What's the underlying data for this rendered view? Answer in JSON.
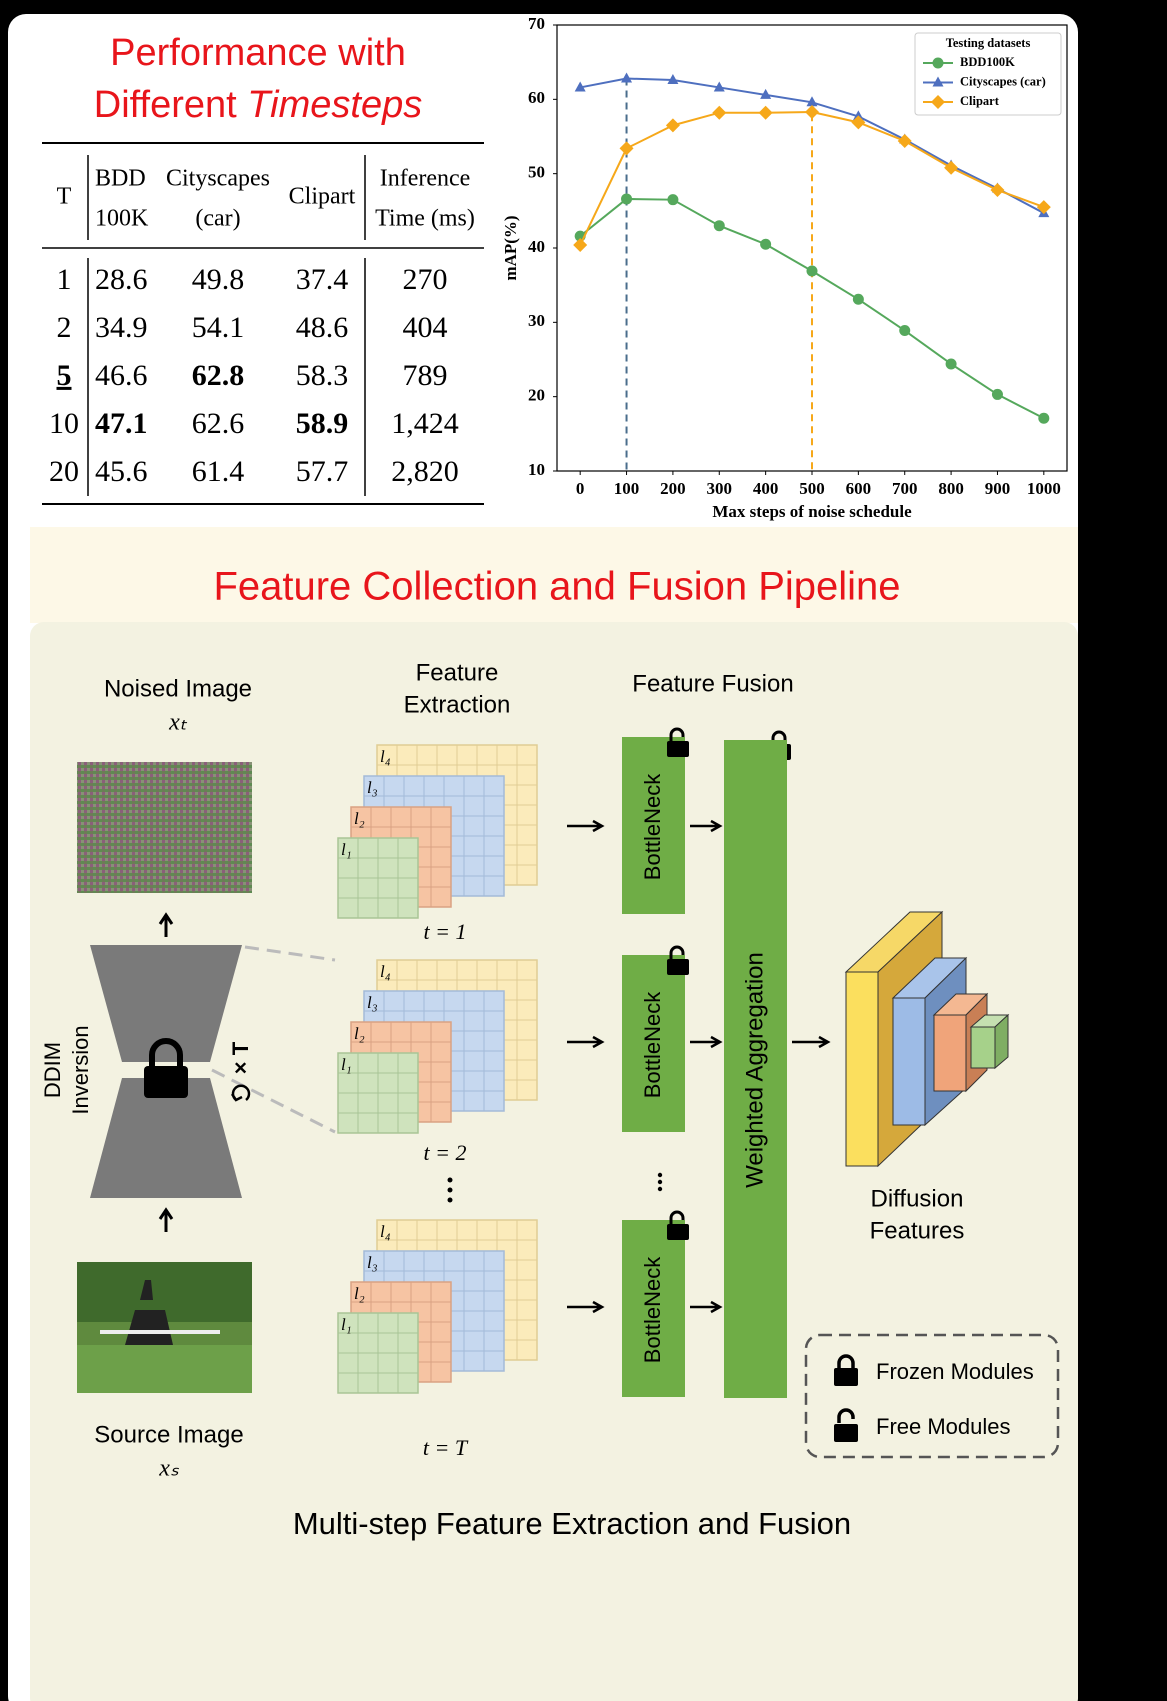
{
  "table": {
    "title_line1": "Performance with",
    "title_line2": "Different",
    "title_line2_italic": "Timesteps",
    "header": [
      [
        "T"
      ],
      [
        "BDD",
        "100K"
      ],
      [
        "Cityscapes",
        "(car)"
      ],
      [
        "Clipart"
      ],
      [
        "Inference",
        "Time (ms)"
      ]
    ],
    "rows": [
      [
        "1",
        "28.6",
        "49.8",
        "37.4",
        "270"
      ],
      [
        "2",
        "34.9",
        "54.1",
        "48.6",
        "404"
      ],
      [
        "5",
        "46.6",
        "62.8",
        "58.3",
        "789"
      ],
      [
        "10",
        "47.1",
        "62.6",
        "58.9",
        "1,424"
      ],
      [
        "20",
        "45.6",
        "61.4",
        "57.7",
        "2,820"
      ]
    ],
    "bold_cells": [
      [
        2,
        0
      ],
      [
        2,
        2
      ],
      [
        3,
        1
      ],
      [
        3,
        3
      ]
    ],
    "underlined_cells": [
      [
        2,
        0
      ]
    ]
  },
  "chart_data": {
    "type": "line",
    "x_label": "Max steps of noise schedule",
    "y_label": "mAP(%)",
    "x": [
      0,
      100,
      200,
      300,
      400,
      500,
      600,
      700,
      800,
      900,
      1000
    ],
    "series": [
      {
        "name": "BDD100K",
        "color": "#55a85c",
        "marker": "circle",
        "values": [
          41.6,
          46.6,
          46.5,
          43.0,
          40.5,
          36.9,
          33.1,
          28.9,
          24.4,
          20.3,
          17.1
        ]
      },
      {
        "name": "Cityscapes (car)",
        "color": "#4e6fbf",
        "marker": "triangle",
        "values": [
          61.6,
          62.8,
          62.6,
          61.6,
          60.6,
          59.6,
          57.7,
          54.6,
          51.1,
          48.0,
          44.7
        ]
      },
      {
        "name": "Clipart",
        "color": "#f6a81a",
        "marker": "diamond",
        "values": [
          40.4,
          53.4,
          56.5,
          58.2,
          58.2,
          58.3,
          56.9,
          54.4,
          50.8,
          47.8,
          45.5
        ]
      }
    ],
    "vlines": [
      {
        "x": 100,
        "color": "#4a6d8c"
      },
      {
        "x": 500,
        "color": "#f6a81a"
      }
    ],
    "xlim": [
      -50,
      1050
    ],
    "ylim": [
      10,
      70
    ],
    "xticks": [
      0,
      100,
      200,
      300,
      400,
      500,
      600,
      700,
      800,
      900,
      1000
    ],
    "yticks": [
      10,
      20,
      30,
      40,
      50,
      60,
      70
    ],
    "legend_title": "Testing datasets",
    "legend": "upper right",
    "grid": false
  },
  "diagram": {
    "title": "Feature Collection and Fusion Pipeline",
    "noised_image": "Noised Image",
    "noised_symbol": "xₜ",
    "source_image": "Source Image",
    "source_symbol": "xₛ",
    "ddim": [
      "DDIM",
      "Inversion"
    ],
    "repeat": "× T",
    "feature_extraction": [
      "Feature",
      "Extraction"
    ],
    "feature_fusion": "Feature Fusion",
    "layer_labels": [
      "l₁",
      "l₂",
      "l₃",
      "l₄"
    ],
    "timesteps": [
      "t = 1",
      "t = 2",
      "t = T"
    ],
    "bottleneck": "BottleNeck",
    "aggregation": "Weighted Aggregation",
    "diffusion_features": [
      "Diffusion",
      "Features"
    ],
    "frozen": "Frozen Modules",
    "free": "Free Modules",
    "caption": "Multi-step Feature Extraction and Fusion"
  }
}
